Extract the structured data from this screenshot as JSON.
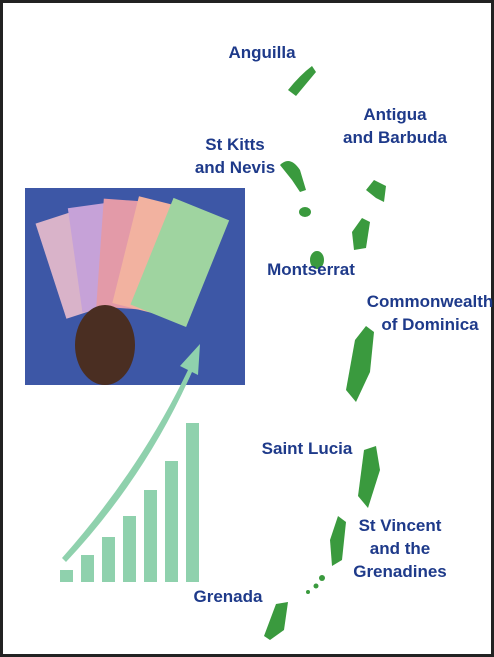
{
  "labels": [
    {
      "lines": [
        "Anguilla"
      ]
    },
    {
      "lines": [
        "Antigua",
        "and Barbuda"
      ]
    },
    {
      "lines": [
        "St Kitts",
        "and Nevis"
      ]
    },
    {
      "lines": [
        "Montserrat"
      ]
    },
    {
      "lines": [
        "Commonwealth",
        "of Dominica"
      ]
    },
    {
      "lines": [
        "Saint Lucia"
      ]
    },
    {
      "lines": [
        "St Vincent",
        "and the",
        "Grenadines"
      ]
    },
    {
      "lines": [
        "Grenada"
      ]
    }
  ]
}
